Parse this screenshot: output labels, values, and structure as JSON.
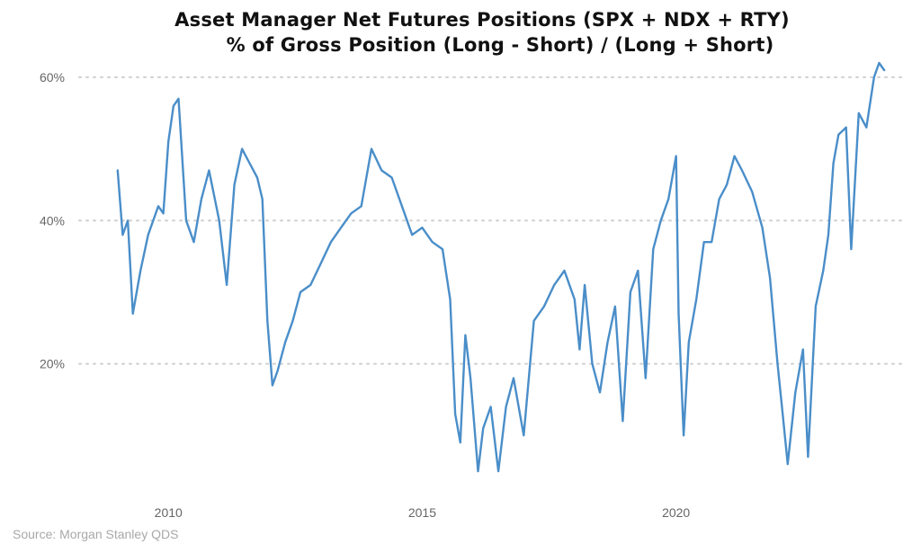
{
  "chart_data": {
    "type": "line",
    "title": "Asset Manager Net Futures Positions (SPX + NDX + RTY)",
    "subtitle": "% of Gross Position (Long - Short) / (Long + Short)",
    "xlabel": "",
    "ylabel": "",
    "xlim": [
      2008.1,
      2024.4
    ],
    "ylim": [
      3,
      62
    ],
    "x_ticks": [
      2010,
      2015,
      2020
    ],
    "x_tick_labels": [
      "2010",
      "2015",
      "2020"
    ],
    "y_ticks": [
      20,
      40,
      60
    ],
    "y_tick_labels": [
      "20%",
      "40%",
      "60%"
    ],
    "grid": "horizontal dotted",
    "legend": "none",
    "series": [
      {
        "color": "#4a8ec9",
        "x": [
          2009.0,
          2009.1,
          2009.2,
          2009.3,
          2009.45,
          2009.6,
          2009.8,
          2009.9,
          2010.0,
          2010.1,
          2010.2,
          2010.35,
          2010.5,
          2010.65,
          2010.8,
          2011.0,
          2011.15,
          2011.3,
          2011.45,
          2011.6,
          2011.75,
          2011.85,
          2011.95,
          2012.05,
          2012.15,
          2012.3,
          2012.45,
          2012.6,
          2012.8,
          2013.0,
          2013.2,
          2013.4,
          2013.6,
          2013.8,
          2014.0,
          2014.2,
          2014.4,
          2014.6,
          2014.8,
          2015.0,
          2015.2,
          2015.4,
          2015.55,
          2015.65,
          2015.75,
          2015.85,
          2015.95,
          2016.1,
          2016.2,
          2016.35,
          2016.5,
          2016.65,
          2016.8,
          2017.0,
          2017.2,
          2017.4,
          2017.6,
          2017.8,
          2018.0,
          2018.1,
          2018.2,
          2018.35,
          2018.5,
          2018.65,
          2018.8,
          2018.95,
          2019.1,
          2019.25,
          2019.4,
          2019.55,
          2019.7,
          2019.85,
          2020.0,
          2020.05,
          2020.15,
          2020.25,
          2020.4,
          2020.55,
          2020.7,
          2020.85,
          2021.0,
          2021.15,
          2021.3,
          2021.5,
          2021.7,
          2021.85,
          2022.0,
          2022.1,
          2022.2,
          2022.35,
          2022.5,
          2022.6,
          2022.75,
          2022.9,
          2023.0,
          2023.1,
          2023.2,
          2023.35,
          2023.45,
          2023.6,
          2023.75,
          2023.9,
          2024.0,
          2024.1
        ],
        "y": [
          47,
          38,
          40,
          27,
          33,
          38,
          42,
          41,
          51,
          56,
          57,
          40,
          37,
          43,
          47,
          40,
          31,
          45,
          50,
          48,
          46,
          43,
          26,
          17,
          19,
          23,
          26,
          30,
          31,
          34,
          37,
          39,
          41,
          42,
          50,
          47,
          46,
          42,
          38,
          39,
          37,
          36,
          29,
          13,
          9,
          24,
          18,
          5,
          11,
          14,
          5,
          14,
          18,
          10,
          26,
          28,
          31,
          33,
          29,
          22,
          31,
          20,
          16,
          23,
          28,
          12,
          30,
          33,
          18,
          36,
          40,
          43,
          49,
          27,
          10,
          23,
          29,
          37,
          37,
          43,
          45,
          49,
          47,
          44,
          39,
          32,
          20,
          13,
          6,
          16,
          22,
          7,
          28,
          33,
          38,
          48,
          52,
          53,
          36,
          55,
          53,
          60,
          62,
          61
        ]
      }
    ]
  },
  "source": "Source: Morgan Stanley QDS"
}
